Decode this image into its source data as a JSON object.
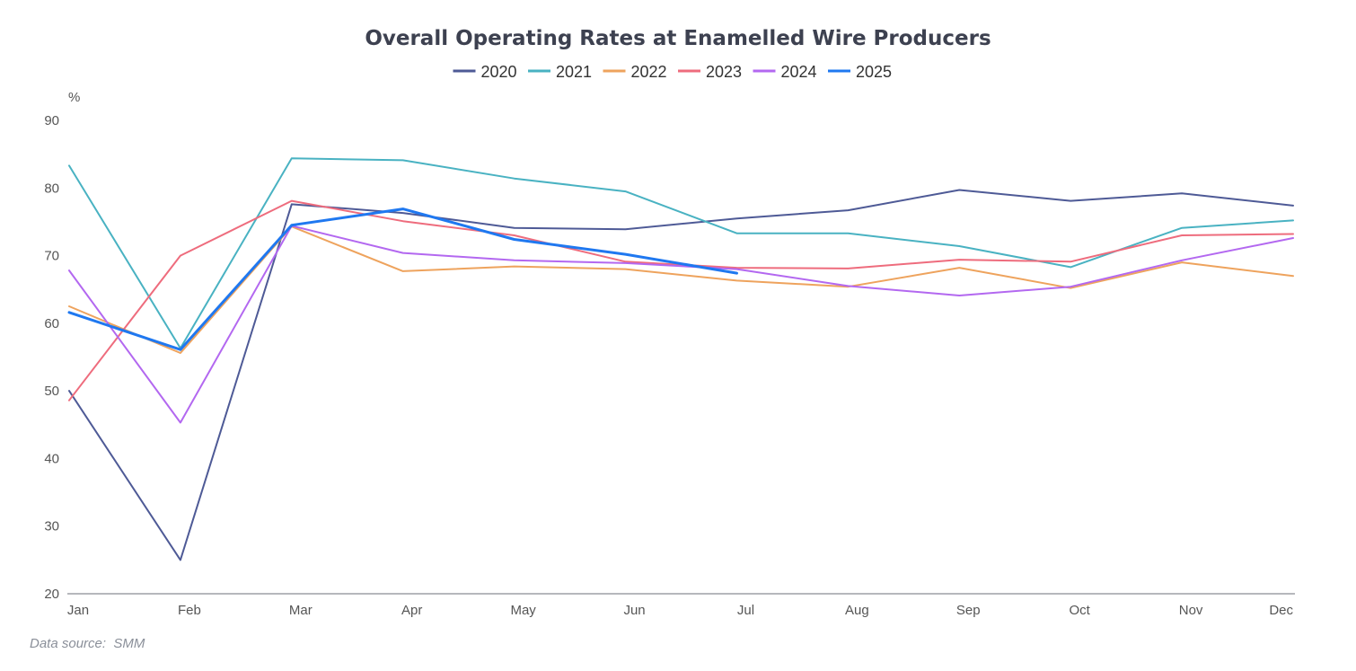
{
  "chart_data": {
    "type": "line",
    "title": "Overall Operating Rates at Enamelled Wire Producers",
    "ylabel": "%",
    "xlabel": "",
    "ylim": [
      20,
      90
    ],
    "yticks": [
      20,
      30,
      40,
      50,
      60,
      70,
      80,
      90
    ],
    "categories": [
      "Jan",
      "Feb",
      "Mar",
      "Apr",
      "May",
      "Jun",
      "Jul",
      "Aug",
      "Sep",
      "Oct",
      "Nov",
      "Dec"
    ],
    "legend_position": "top-center",
    "grid": false,
    "series": [
      {
        "name": "2020",
        "color": "#4e5a96",
        "width": 2,
        "values": [
          50,
          25,
          77.6,
          76.3,
          74.1,
          73.9,
          75.5,
          76.7,
          79.7,
          78.1,
          79.2,
          77.4
        ]
      },
      {
        "name": "2021",
        "color": "#49b2c2",
        "width": 2,
        "values": [
          83.3,
          56.3,
          84.4,
          84.1,
          81.4,
          79.5,
          73.3,
          73.3,
          71.4,
          68.3,
          74.1,
          75.2
        ]
      },
      {
        "name": "2022",
        "color": "#eea35d",
        "width": 2,
        "values": [
          62.5,
          55.6,
          74.3,
          67.7,
          68.4,
          68,
          66.3,
          65.4,
          68.2,
          65.2,
          69,
          67
        ]
      },
      {
        "name": "2023",
        "color": "#ee6c7d",
        "width": 2,
        "values": [
          48.6,
          70,
          78.1,
          75.1,
          73,
          69.1,
          68.2,
          68.1,
          69.4,
          69.1,
          73,
          73.2
        ]
      },
      {
        "name": "2024",
        "color": "#b368f0",
        "width": 2,
        "values": [
          67.8,
          45.3,
          74.4,
          70.4,
          69.3,
          68.9,
          68,
          65.5,
          64.1,
          65.4,
          69.3,
          72.6
        ]
      },
      {
        "name": "2025",
        "color": "#1f78f0",
        "width": 3,
        "values": [
          61.6,
          56.1,
          74.5,
          76.9,
          72.4,
          70.2,
          67.4,
          null,
          null,
          null,
          null,
          null
        ]
      }
    ]
  },
  "footer": {
    "source": "Data source:  SMM"
  }
}
